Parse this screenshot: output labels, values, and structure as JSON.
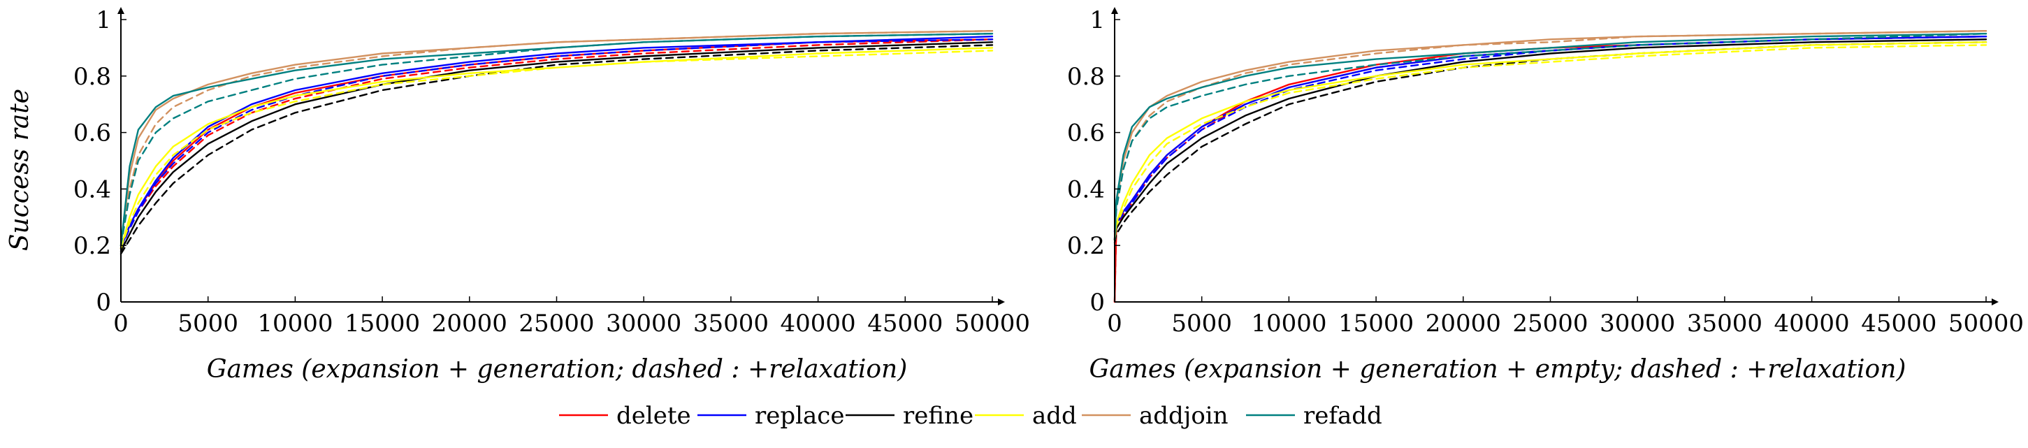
{
  "chart_data": [
    {
      "type": "line",
      "xlabel": "Games (expansion + generation;  dashed : +relaxation)",
      "ylabel": "Success rate",
      "xlim": [
        0,
        50000
      ],
      "ylim": [
        0,
        1
      ],
      "xticks": [
        "0",
        "5000",
        "10000",
        "15000",
        "20000",
        "25000",
        "30000",
        "35000",
        "40000",
        "45000",
        "50000"
      ],
      "yticks": [
        "0",
        "0.2",
        "0.4",
        "0.6",
        "0.8",
        "1"
      ],
      "grid": false,
      "series": [
        {
          "name": "delete",
          "color": "#ff0000",
          "dashed": false,
          "x": [
            0,
            500,
            1000,
            2000,
            3000,
            5000,
            7500,
            10000,
            15000,
            20000,
            25000,
            30000,
            40000,
            50000
          ],
          "y": [
            0.19,
            0.27,
            0.33,
            0.42,
            0.5,
            0.61,
            0.69,
            0.74,
            0.8,
            0.84,
            0.87,
            0.89,
            0.92,
            0.93
          ]
        },
        {
          "name": "delete",
          "color": "#ff0000",
          "dashed": true,
          "x": [
            0,
            500,
            1000,
            2000,
            3000,
            5000,
            7500,
            10000,
            15000,
            20000,
            25000,
            30000,
            40000,
            50000
          ],
          "y": [
            0.19,
            0.26,
            0.32,
            0.41,
            0.48,
            0.59,
            0.67,
            0.72,
            0.79,
            0.83,
            0.86,
            0.88,
            0.91,
            0.93
          ]
        },
        {
          "name": "replace",
          "color": "#0000ff",
          "dashed": false,
          "x": [
            0,
            500,
            1000,
            2000,
            3000,
            5000,
            7500,
            10000,
            15000,
            20000,
            25000,
            30000,
            40000,
            50000
          ],
          "y": [
            0.19,
            0.27,
            0.33,
            0.43,
            0.51,
            0.62,
            0.7,
            0.75,
            0.81,
            0.85,
            0.88,
            0.9,
            0.92,
            0.94
          ]
        },
        {
          "name": "replace",
          "color": "#0000ff",
          "dashed": true,
          "x": [
            0,
            500,
            1000,
            2000,
            3000,
            5000,
            7500,
            10000,
            15000,
            20000,
            25000,
            30000,
            40000,
            50000
          ],
          "y": [
            0.19,
            0.26,
            0.32,
            0.42,
            0.49,
            0.6,
            0.68,
            0.73,
            0.8,
            0.84,
            0.87,
            0.89,
            0.92,
            0.93
          ]
        },
        {
          "name": "refine",
          "color": "#000000",
          "dashed": false,
          "x": [
            0,
            500,
            1000,
            2000,
            3000,
            5000,
            7500,
            10000,
            15000,
            20000,
            25000,
            30000,
            40000,
            50000
          ],
          "y": [
            0.18,
            0.24,
            0.3,
            0.39,
            0.46,
            0.56,
            0.64,
            0.7,
            0.77,
            0.82,
            0.85,
            0.87,
            0.9,
            0.92
          ]
        },
        {
          "name": "refine",
          "color": "#000000",
          "dashed": true,
          "x": [
            0,
            500,
            1000,
            2000,
            3000,
            5000,
            7500,
            10000,
            15000,
            20000,
            25000,
            30000,
            40000,
            50000
          ],
          "y": [
            0.17,
            0.22,
            0.27,
            0.35,
            0.42,
            0.52,
            0.61,
            0.67,
            0.75,
            0.8,
            0.84,
            0.86,
            0.89,
            0.91
          ]
        },
        {
          "name": "add",
          "color": "#ffff00",
          "dashed": false,
          "x": [
            0,
            500,
            1000,
            2000,
            3000,
            5000,
            7500,
            10000,
            15000,
            20000,
            25000,
            30000,
            40000,
            50000
          ],
          "y": [
            0.19,
            0.3,
            0.38,
            0.48,
            0.55,
            0.63,
            0.69,
            0.73,
            0.78,
            0.81,
            0.83,
            0.85,
            0.88,
            0.9
          ]
        },
        {
          "name": "add",
          "color": "#ffff00",
          "dashed": true,
          "x": [
            0,
            500,
            1000,
            2000,
            3000,
            5000,
            7500,
            10000,
            15000,
            20000,
            25000,
            30000,
            40000,
            50000
          ],
          "y": [
            0.19,
            0.28,
            0.35,
            0.45,
            0.52,
            0.61,
            0.67,
            0.71,
            0.77,
            0.8,
            0.83,
            0.85,
            0.87,
            0.89
          ]
        },
        {
          "name": "addjoin",
          "color": "#d2915f",
          "dashed": false,
          "x": [
            0,
            500,
            1000,
            2000,
            3000,
            5000,
            7500,
            10000,
            15000,
            20000,
            25000,
            30000,
            40000,
            50000
          ],
          "y": [
            0.2,
            0.45,
            0.58,
            0.68,
            0.72,
            0.77,
            0.81,
            0.84,
            0.88,
            0.9,
            0.92,
            0.93,
            0.95,
            0.96
          ]
        },
        {
          "name": "addjoin",
          "color": "#d2915f",
          "dashed": true,
          "x": [
            0,
            500,
            1000,
            2000,
            3000,
            5000,
            7500,
            10000,
            15000,
            20000,
            25000,
            30000,
            40000,
            50000
          ],
          "y": [
            0.2,
            0.4,
            0.52,
            0.63,
            0.69,
            0.75,
            0.8,
            0.83,
            0.87,
            0.9,
            0.92,
            0.93,
            0.95,
            0.96
          ]
        },
        {
          "name": "refadd",
          "color": "#008080",
          "dashed": false,
          "x": [
            0,
            500,
            1000,
            2000,
            3000,
            5000,
            7500,
            10000,
            15000,
            20000,
            25000,
            30000,
            40000,
            50000
          ],
          "y": [
            0.2,
            0.48,
            0.61,
            0.69,
            0.73,
            0.76,
            0.79,
            0.82,
            0.86,
            0.88,
            0.9,
            0.92,
            0.94,
            0.95
          ]
        },
        {
          "name": "refadd",
          "color": "#008080",
          "dashed": true,
          "x": [
            0,
            500,
            1000,
            2000,
            3000,
            5000,
            7500,
            10000,
            15000,
            20000,
            25000,
            30000,
            40000,
            50000
          ],
          "y": [
            0.2,
            0.38,
            0.5,
            0.6,
            0.65,
            0.71,
            0.75,
            0.79,
            0.84,
            0.87,
            0.9,
            0.92,
            0.94,
            0.95
          ]
        }
      ]
    },
    {
      "type": "line",
      "xlabel": "Games (expansion + generation + empty;  dashed : +relaxation)",
      "ylabel": "",
      "xlim": [
        0,
        50000
      ],
      "ylim": [
        0,
        1
      ],
      "xticks": [
        "0",
        "5000",
        "10000",
        "15000",
        "20000",
        "25000",
        "30000",
        "35000",
        "40000",
        "45000",
        "50000"
      ],
      "yticks": [
        "0",
        "0.2",
        "0.4",
        "0.6",
        "0.8",
        "1"
      ],
      "grid": false,
      "series": [
        {
          "name": "delete",
          "color": "#ff0000",
          "dashed": false,
          "x": [
            0,
            100,
            500,
            1000,
            2000,
            3000,
            5000,
            7500,
            10000,
            15000,
            20000,
            25000,
            30000,
            40000,
            50000
          ],
          "y": [
            0.0,
            0.28,
            0.32,
            0.36,
            0.45,
            0.52,
            0.62,
            0.71,
            0.77,
            0.84,
            0.88,
            0.9,
            0.91,
            0.93,
            0.94
          ]
        },
        {
          "name": "delete",
          "color": "#ff0000",
          "dashed": true,
          "x": [
            0,
            100,
            500,
            1000,
            2000,
            3000,
            5000,
            7500,
            10000,
            15000,
            20000,
            25000,
            30000,
            40000,
            50000
          ],
          "y": [
            0.0,
            0.27,
            0.31,
            0.35,
            0.44,
            0.51,
            0.61,
            0.7,
            0.76,
            0.83,
            0.87,
            0.89,
            0.91,
            0.93,
            0.94
          ]
        },
        {
          "name": "replace",
          "color": "#0000ff",
          "dashed": false,
          "x": [
            0,
            100,
            500,
            1000,
            2000,
            3000,
            5000,
            7500,
            10000,
            15000,
            20000,
            25000,
            30000,
            40000,
            50000
          ],
          "y": [
            0.25,
            0.28,
            0.32,
            0.36,
            0.45,
            0.52,
            0.62,
            0.7,
            0.76,
            0.83,
            0.87,
            0.89,
            0.91,
            0.93,
            0.94
          ]
        },
        {
          "name": "replace",
          "color": "#0000ff",
          "dashed": true,
          "x": [
            0,
            100,
            500,
            1000,
            2000,
            3000,
            5000,
            7500,
            10000,
            15000,
            20000,
            25000,
            30000,
            40000,
            50000
          ],
          "y": [
            0.25,
            0.28,
            0.31,
            0.35,
            0.44,
            0.51,
            0.61,
            0.69,
            0.75,
            0.82,
            0.86,
            0.89,
            0.91,
            0.93,
            0.94
          ]
        },
        {
          "name": "refine",
          "color": "#000000",
          "dashed": false,
          "x": [
            0,
            100,
            500,
            1000,
            2000,
            3000,
            5000,
            7500,
            10000,
            15000,
            20000,
            25000,
            30000,
            40000,
            50000
          ],
          "y": [
            0.22,
            0.26,
            0.3,
            0.34,
            0.42,
            0.49,
            0.58,
            0.66,
            0.72,
            0.8,
            0.85,
            0.88,
            0.9,
            0.92,
            0.93
          ]
        },
        {
          "name": "refine",
          "color": "#000000",
          "dashed": true,
          "x": [
            0,
            100,
            500,
            1000,
            2000,
            3000,
            5000,
            7500,
            10000,
            15000,
            20000,
            25000,
            30000,
            40000,
            50000
          ],
          "y": [
            0.21,
            0.24,
            0.28,
            0.32,
            0.39,
            0.45,
            0.55,
            0.63,
            0.7,
            0.78,
            0.83,
            0.86,
            0.88,
            0.91,
            0.92
          ]
        },
        {
          "name": "add",
          "color": "#ffff00",
          "dashed": false,
          "x": [
            0,
            100,
            500,
            1000,
            2000,
            3000,
            5000,
            7500,
            10000,
            15000,
            20000,
            25000,
            30000,
            40000,
            50000
          ],
          "y": [
            0.22,
            0.28,
            0.35,
            0.42,
            0.52,
            0.58,
            0.65,
            0.71,
            0.75,
            0.8,
            0.84,
            0.86,
            0.88,
            0.91,
            0.92
          ]
        },
        {
          "name": "add",
          "color": "#ffff00",
          "dashed": true,
          "x": [
            0,
            100,
            500,
            1000,
            2000,
            3000,
            5000,
            7500,
            10000,
            15000,
            20000,
            25000,
            30000,
            40000,
            50000
          ],
          "y": [
            0.22,
            0.27,
            0.33,
            0.4,
            0.49,
            0.56,
            0.63,
            0.69,
            0.74,
            0.79,
            0.83,
            0.85,
            0.87,
            0.9,
            0.91
          ]
        },
        {
          "name": "addjoin",
          "color": "#d2915f",
          "dashed": false,
          "x": [
            0,
            100,
            500,
            1000,
            2000,
            3000,
            5000,
            7500,
            10000,
            15000,
            20000,
            25000,
            30000,
            40000,
            50000
          ],
          "y": [
            0.22,
            0.35,
            0.5,
            0.6,
            0.69,
            0.73,
            0.78,
            0.82,
            0.85,
            0.89,
            0.91,
            0.93,
            0.94,
            0.95,
            0.96
          ]
        },
        {
          "name": "addjoin",
          "color": "#d2915f",
          "dashed": true,
          "x": [
            0,
            100,
            500,
            1000,
            2000,
            3000,
            5000,
            7500,
            10000,
            15000,
            20000,
            25000,
            30000,
            40000,
            50000
          ],
          "y": [
            0.22,
            0.33,
            0.47,
            0.57,
            0.66,
            0.71,
            0.76,
            0.81,
            0.84,
            0.88,
            0.91,
            0.92,
            0.94,
            0.95,
            0.96
          ]
        },
        {
          "name": "refadd",
          "color": "#008080",
          "dashed": false,
          "x": [
            0,
            100,
            500,
            1000,
            2000,
            3000,
            5000,
            7500,
            10000,
            15000,
            20000,
            25000,
            30000,
            40000,
            50000
          ],
          "y": [
            0.22,
            0.36,
            0.52,
            0.62,
            0.69,
            0.72,
            0.76,
            0.8,
            0.83,
            0.86,
            0.88,
            0.9,
            0.92,
            0.94,
            0.95
          ]
        },
        {
          "name": "refadd",
          "color": "#008080",
          "dashed": true,
          "x": [
            0,
            100,
            500,
            1000,
            2000,
            3000,
            5000,
            7500,
            10000,
            15000,
            20000,
            25000,
            30000,
            40000,
            50000
          ],
          "y": [
            0.22,
            0.33,
            0.47,
            0.57,
            0.65,
            0.69,
            0.73,
            0.77,
            0.8,
            0.84,
            0.87,
            0.89,
            0.91,
            0.93,
            0.95
          ]
        }
      ]
    }
  ],
  "legend": {
    "placement": "bottom-center",
    "entries": [
      {
        "label": "delete",
        "color": "#ff0000"
      },
      {
        "label": "replace",
        "color": "#0000ff"
      },
      {
        "label": "refine",
        "color": "#000000"
      },
      {
        "label": "add",
        "color": "#ffff00"
      },
      {
        "label": "addjoin",
        "color": "#d2915f"
      },
      {
        "label": "refadd",
        "color": "#008080"
      }
    ]
  }
}
